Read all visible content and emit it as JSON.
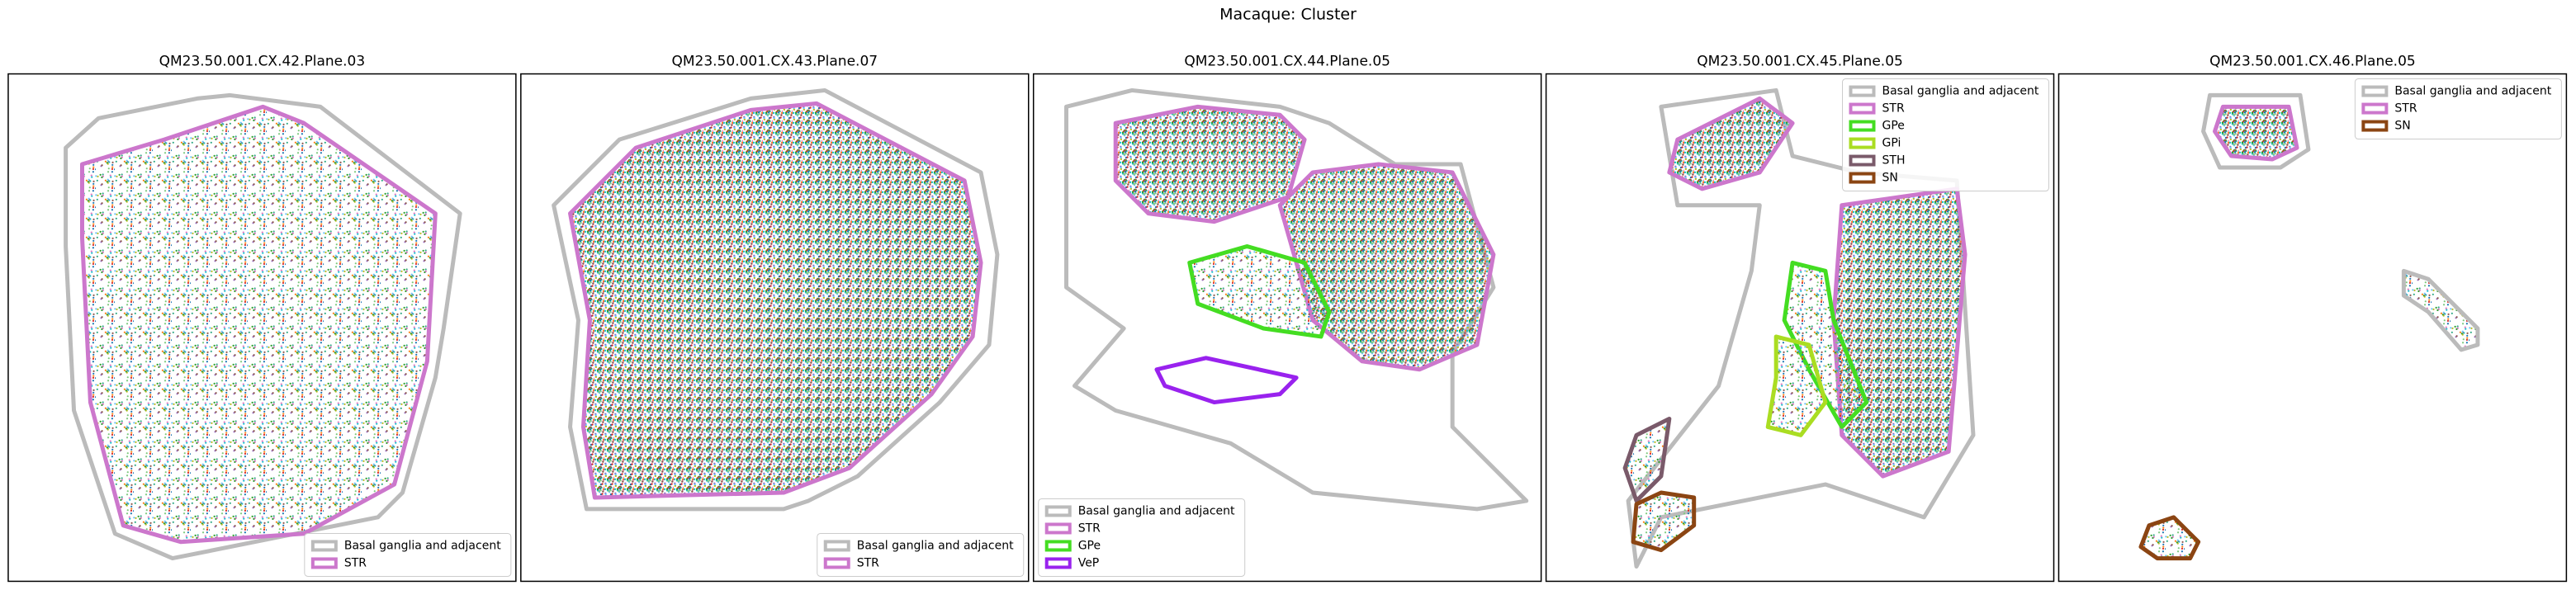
{
  "title": "Macaque: Cluster",
  "panels": [
    {
      "title": "QM23.50.001.CX.42.Plane.03",
      "legend_corner": "lower right",
      "legend": [
        {
          "label": "Basal ganglia and adjacent",
          "color": "#bbbbbb"
        },
        {
          "label": "STR",
          "color": "#cc77cc"
        }
      ]
    },
    {
      "title": "QM23.50.001.CX.43.Plane.07",
      "legend_corner": "lower right",
      "legend": [
        {
          "label": "Basal ganglia and adjacent",
          "color": "#bbbbbb"
        },
        {
          "label": "STR",
          "color": "#cc77cc"
        }
      ]
    },
    {
      "title": "QM23.50.001.CX.44.Plane.05",
      "legend_corner": "lower left",
      "legend": [
        {
          "label": "Basal ganglia and adjacent",
          "color": "#bbbbbb"
        },
        {
          "label": "STR",
          "color": "#cc77cc"
        },
        {
          "label": "GPe",
          "color": "#44dd22"
        },
        {
          "label": "VeP",
          "color": "#9922ee"
        }
      ]
    },
    {
      "title": "QM23.50.001.CX.45.Plane.05",
      "legend_corner": "upper right",
      "legend": [
        {
          "label": "Basal ganglia and adjacent",
          "color": "#bbbbbb"
        },
        {
          "label": "STR",
          "color": "#cc77cc"
        },
        {
          "label": "GPe",
          "color": "#44dd22"
        },
        {
          "label": "GPi",
          "color": "#aadd22"
        },
        {
          "label": "STH",
          "color": "#7a5a6a"
        },
        {
          "label": "SN",
          "color": "#8b4513"
        }
      ]
    },
    {
      "title": "QM23.50.001.CX.46.Plane.05",
      "legend_corner": "upper right",
      "legend": [
        {
          "label": "Basal ganglia and adjacent",
          "color": "#bbbbbb"
        },
        {
          "label": "STR",
          "color": "#cc77cc"
        },
        {
          "label": "SN",
          "color": "#8b4513"
        }
      ]
    }
  ]
}
